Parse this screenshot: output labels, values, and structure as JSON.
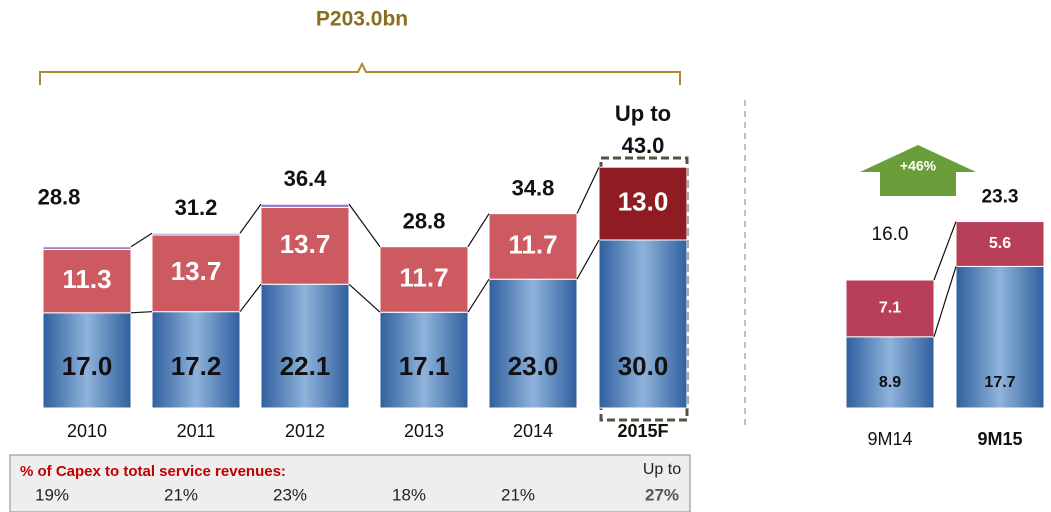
{
  "chart_data": [
    {
      "type": "stacked_bar",
      "brace_label": "P203.0bn",
      "categories": [
        "2010",
        "2011",
        "2012",
        "2013",
        "2014",
        "2015F"
      ],
      "series": [
        {
          "color": "#3d72b8",
          "values": [
            17.0,
            17.2,
            22.1,
            17.1,
            23.0,
            30.0
          ],
          "value_labels": [
            "17.0",
            "17.2",
            "22.1",
            "17.1",
            "23.0",
            "30.0"
          ]
        },
        {
          "color": "#cc5a60",
          "colors": [
            "#cc5a60",
            "#cc5a60",
            "#cc5a60",
            "#cc5a60",
            "#cc5a60",
            "#8e1c22"
          ],
          "values": [
            11.3,
            13.7,
            13.7,
            11.7,
            11.7,
            13.0
          ],
          "value_labels": [
            "11.3",
            "13.7",
            "13.7",
            "11.7",
            "11.7",
            "13.0"
          ]
        },
        {
          "color": "#9a7fc4",
          "values": [
            0.5,
            0.3,
            0.6,
            0,
            0,
            0
          ]
        }
      ],
      "total_labels": [
        "28.8",
        "31.2",
        "36.4",
        "28.8",
        "34.8",
        "43.0"
      ],
      "total_note": "Up to",
      "capex_ratio": {
        "title": "% of Capex to total service revenues:",
        "note": "Up to",
        "values": [
          "19%",
          "21%",
          "23%",
          "18%",
          "21%",
          "27%"
        ]
      }
    },
    {
      "type": "stacked_bar",
      "growth_label": "+46%",
      "categories": [
        "9M14",
        "9M15"
      ],
      "series": [
        {
          "color": "#3d72b8",
          "values": [
            8.9,
            17.7
          ],
          "value_labels": [
            "8.9",
            "17.7"
          ]
        },
        {
          "color": "#b83f58",
          "values": [
            7.1,
            5.6
          ],
          "value_labels": [
            "7.1",
            "5.6"
          ]
        }
      ],
      "total_labels": [
        "16.0",
        "23.3"
      ]
    }
  ]
}
